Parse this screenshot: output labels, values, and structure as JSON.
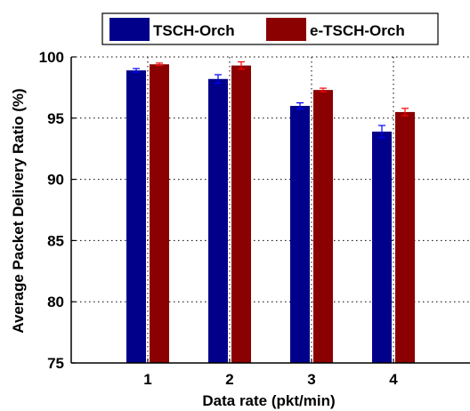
{
  "chart_data": {
    "type": "bar",
    "title": "",
    "xlabel": "Data rate (pkt/min)",
    "ylabel": "Average Packet Delivery Ratio (%)",
    "categories": [
      "1",
      "2",
      "3",
      "4"
    ],
    "ylim": [
      75,
      100
    ],
    "yticks": [
      75,
      80,
      85,
      90,
      95,
      100
    ],
    "grid": true,
    "legend_position": "top",
    "series": [
      {
        "name": "TSCH-Orch",
        "color": "#00008b",
        "error_color": "#0000ff",
        "values": [
          98.9,
          98.2,
          96.0,
          93.9
        ],
        "errors": [
          0.15,
          0.35,
          0.25,
          0.5
        ]
      },
      {
        "name": "e-TSCH-Orch",
        "color": "#8b0000",
        "error_color": "#ff0000",
        "values": [
          99.4,
          99.3,
          97.3,
          95.5
        ],
        "errors": [
          0.1,
          0.3,
          0.15,
          0.3
        ]
      }
    ]
  }
}
